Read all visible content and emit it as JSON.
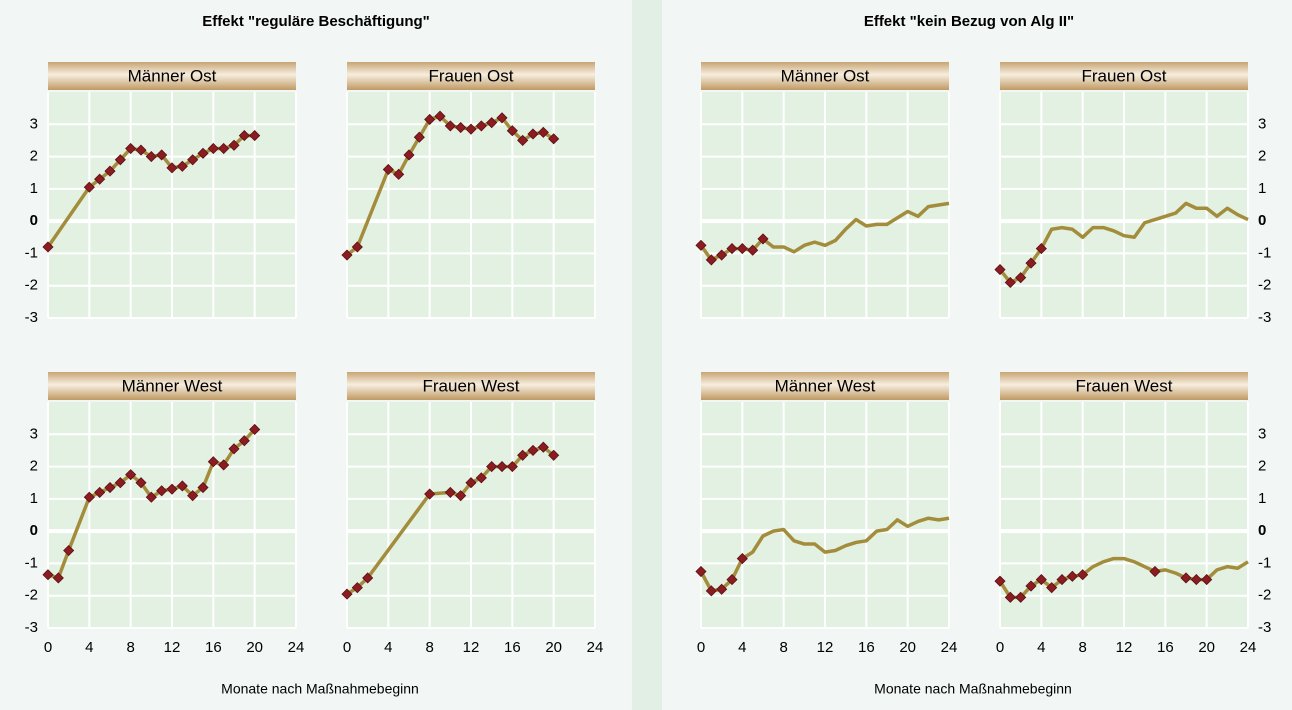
{
  "chart_data": [
    {
      "type": "line",
      "title": "Effekt \"reguläre Beschäftigung\"",
      "xlabel": "Monate nach Maßnahmebeginn",
      "xlim": [
        0,
        24
      ],
      "xticks": [
        0,
        4,
        8,
        12,
        16,
        20,
        24
      ],
      "ylim": [
        -3,
        4
      ],
      "yticks": [
        -3,
        -2,
        -1,
        0,
        1,
        2,
        3
      ],
      "grid": true,
      "yaxis_side": "left",
      "color": "#a38d3c",
      "marker_color": "#8b1c22",
      "markers": true,
      "panels": [
        {
          "title": "Männer Ost",
          "x": [
            0,
            4,
            5,
            6,
            7,
            8,
            9,
            10,
            11,
            12,
            13,
            14,
            15,
            16,
            17,
            18,
            19,
            20
          ],
          "values": [
            -0.8,
            1.05,
            1.3,
            1.55,
            1.9,
            2.25,
            2.2,
            2.0,
            2.05,
            1.65,
            1.7,
            1.9,
            2.1,
            2.25,
            2.25,
            2.35,
            2.65,
            2.65
          ]
        },
        {
          "title": "Frauen Ost",
          "x": [
            0,
            1,
            4,
            5,
            6,
            7,
            8,
            9,
            10,
            11,
            12,
            13,
            14,
            15,
            16,
            17,
            18,
            19,
            20
          ],
          "values": [
            -1.05,
            -0.8,
            1.6,
            1.45,
            2.05,
            2.6,
            3.15,
            3.25,
            2.95,
            2.9,
            2.85,
            2.95,
            3.05,
            3.2,
            2.8,
            2.5,
            2.7,
            2.75,
            2.55
          ]
        },
        {
          "title": "Männer West",
          "x": [
            0,
            1,
            2,
            4,
            5,
            6,
            7,
            8,
            9,
            10,
            11,
            12,
            13,
            14,
            15,
            16,
            17,
            18,
            19,
            20
          ],
          "values": [
            -1.35,
            -1.45,
            -0.6,
            1.05,
            1.2,
            1.35,
            1.5,
            1.75,
            1.5,
            1.05,
            1.25,
            1.3,
            1.4,
            1.1,
            1.35,
            2.15,
            2.05,
            2.55,
            2.8,
            3.15
          ]
        },
        {
          "title": "Frauen West",
          "x": [
            0,
            1,
            2,
            8,
            10,
            11,
            12,
            13,
            14,
            15,
            16,
            17,
            18,
            19,
            20
          ],
          "values": [
            -1.95,
            -1.75,
            -1.45,
            1.15,
            1.2,
            1.1,
            1.5,
            1.65,
            2.0,
            2.0,
            2.0,
            2.35,
            2.5,
            2.6,
            2.35
          ]
        }
      ]
    },
    {
      "type": "line",
      "title": "Effekt \"kein Bezug von Alg II\"",
      "xlabel": "Monate nach Maßnahmebeginn",
      "xlim": [
        0,
        24
      ],
      "xticks": [
        0,
        4,
        8,
        12,
        16,
        20,
        24
      ],
      "ylim": [
        -3,
        4
      ],
      "yticks": [
        -3,
        -2,
        -1,
        0,
        1,
        2,
        3
      ],
      "grid": true,
      "yaxis_side": "right",
      "color": "#a38d3c",
      "marker_color": "#8b1c22",
      "markers": false,
      "panels": [
        {
          "title": "Männer Ost",
          "x": [
            0,
            1,
            2,
            3,
            4,
            5,
            6,
            7,
            8,
            9,
            10,
            11,
            12,
            13,
            14,
            15,
            16,
            17,
            18,
            19,
            20,
            21,
            22,
            23,
            24
          ],
          "values": [
            -0.75,
            -1.2,
            -1.05,
            -0.85,
            -0.85,
            -0.9,
            -0.55,
            -0.8,
            -0.8,
            -0.95,
            -0.75,
            -0.65,
            -0.75,
            -0.6,
            -0.25,
            0.05,
            -0.15,
            -0.1,
            -0.1,
            0.1,
            0.3,
            0.15,
            0.45,
            0.5,
            0.55
          ],
          "marked": [
            true,
            true,
            true,
            true,
            true,
            true,
            true,
            false,
            false,
            false,
            false,
            false,
            false,
            false,
            false,
            false,
            false,
            false,
            false,
            false,
            false,
            false,
            false,
            false,
            false
          ]
        },
        {
          "title": "Frauen Ost",
          "x": [
            0,
            1,
            2,
            3,
            4,
            5,
            6,
            7,
            8,
            9,
            10,
            11,
            12,
            13,
            14,
            15,
            16,
            17,
            18,
            19,
            20,
            21,
            22,
            23,
            24
          ],
          "values": [
            -1.5,
            -1.9,
            -1.75,
            -1.3,
            -0.85,
            -0.25,
            -0.2,
            -0.25,
            -0.5,
            -0.2,
            -0.2,
            -0.3,
            -0.45,
            -0.5,
            -0.05,
            0.05,
            0.15,
            0.25,
            0.55,
            0.4,
            0.4,
            0.15,
            0.4,
            0.2,
            0.05
          ],
          "marked": [
            true,
            true,
            true,
            true,
            true,
            false,
            false,
            false,
            false,
            false,
            false,
            false,
            false,
            false,
            false,
            false,
            false,
            false,
            false,
            false,
            false,
            false,
            false,
            false,
            false
          ]
        },
        {
          "title": "Männer West",
          "x": [
            0,
            1,
            2,
            3,
            4,
            5,
            6,
            7,
            8,
            9,
            10,
            11,
            12,
            13,
            14,
            15,
            16,
            17,
            18,
            19,
            20,
            21,
            22,
            23,
            24
          ],
          "values": [
            -1.25,
            -1.85,
            -1.8,
            -1.5,
            -0.85,
            -0.65,
            -0.15,
            0,
            0.05,
            -0.3,
            -0.4,
            -0.4,
            -0.65,
            -0.6,
            -0.45,
            -0.35,
            -0.3,
            0,
            0.05,
            0.35,
            0.15,
            0.3,
            0.4,
            0.35,
            0.4
          ],
          "marked": [
            true,
            true,
            true,
            true,
            true,
            false,
            false,
            false,
            false,
            false,
            false,
            false,
            false,
            false,
            false,
            false,
            false,
            false,
            false,
            false,
            false,
            false,
            false,
            false,
            false
          ]
        },
        {
          "title": "Frauen West",
          "x": [
            0,
            1,
            2,
            3,
            4,
            5,
            6,
            7,
            8,
            9,
            10,
            11,
            12,
            13,
            14,
            15,
            16,
            17,
            18,
            19,
            20,
            21,
            22,
            23,
            24
          ],
          "values": [
            -1.55,
            -2.05,
            -2.05,
            -1.7,
            -1.5,
            -1.75,
            -1.5,
            -1.4,
            -1.35,
            -1.1,
            -0.95,
            -0.85,
            -0.85,
            -0.95,
            -1.1,
            -1.25,
            -1.2,
            -1.3,
            -1.45,
            -1.5,
            -1.5,
            -1.2,
            -1.1,
            -1.15,
            -0.95
          ],
          "marked": [
            true,
            true,
            true,
            true,
            true,
            true,
            true,
            true,
            true,
            false,
            false,
            false,
            false,
            false,
            false,
            true,
            false,
            false,
            true,
            true,
            true,
            false,
            false,
            false,
            false
          ]
        }
      ]
    }
  ]
}
